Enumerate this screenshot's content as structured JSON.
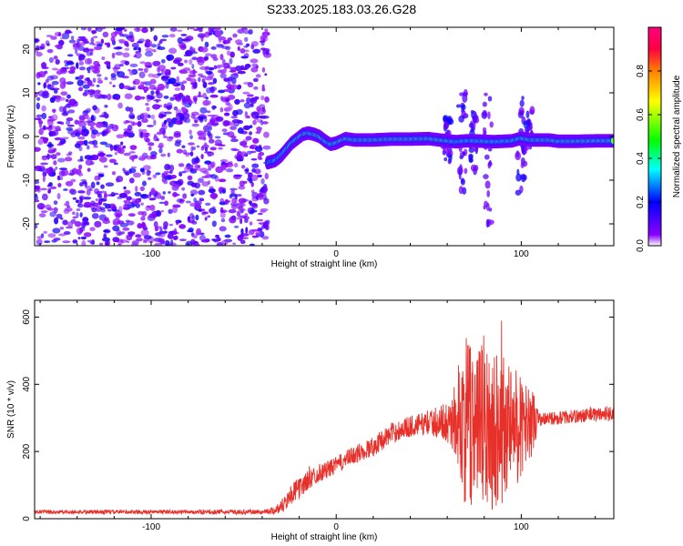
{
  "page": {
    "title": "S233.2025.183.03.26.G28"
  },
  "chart_data": [
    {
      "type": "heatmap",
      "title": "S233.2025.183.03.26.G28",
      "xlabel": "Height of straight line (km)",
      "ylabel": "Frequency (Hz)",
      "xlim": [
        -163,
        150
      ],
      "ylim": [
        -25,
        25
      ],
      "x_ticks": [
        -100,
        0,
        100
      ],
      "y_ticks": [
        -20,
        -10,
        0,
        10,
        20
      ],
      "colorbar": {
        "label": "Normalized spectral amplitude",
        "range": [
          0,
          1
        ],
        "ticks": [
          0.0,
          0.2,
          0.4,
          0.6,
          0.8
        ],
        "tick_labels": [
          "0.0",
          "0.2",
          "0.4",
          "0.6",
          "0.8"
        ],
        "colors": [
          "#ffffff",
          "#8a00ff",
          "#0000ff",
          "#00ffff",
          "#00ff00",
          "#ffff00",
          "#ff8000",
          "#ff0040",
          "#ff0080"
        ]
      },
      "noise_region": {
        "x": [
          -163,
          -37
        ],
        "freq": [
          -25,
          25
        ],
        "level": "0.05-0.35"
      },
      "signal_track": {
        "x": [
          -37,
          -33,
          -30,
          -27,
          -24,
          -21,
          -18,
          -15,
          -12,
          -9,
          -6,
          -3,
          0,
          5,
          10,
          20,
          30,
          40,
          50,
          60,
          65,
          70,
          75,
          80,
          85,
          90,
          95,
          100,
          105,
          110,
          115,
          120,
          130,
          140,
          150
        ],
        "freq": [
          -6,
          -5.5,
          -4.5,
          -3,
          -1.5,
          -0.5,
          0.5,
          0.8,
          0.5,
          0,
          -1,
          -1.8,
          -1.5,
          -0.5,
          -0.8,
          -0.8,
          -0.6,
          -0.6,
          -0.5,
          -1.0,
          -1.2,
          -1.0,
          -1.0,
          -1.1,
          -1.2,
          -1.1,
          -1.0,
          -0.4,
          -0.8,
          -0.8,
          -0.8,
          -1.1,
          -1.1,
          -1.0,
          -1.0
        ],
        "amp": [
          0.3,
          0.35,
          0.35,
          0.4,
          0.45,
          0.6,
          0.8,
          0.85,
          0.8,
          0.7,
          0.6,
          0.5,
          0.6,
          0.8,
          0.9,
          0.9,
          0.88,
          0.85,
          0.8,
          0.6,
          0.35,
          0.35,
          0.4,
          0.45,
          0.35,
          0.4,
          0.45,
          0.5,
          0.9,
          0.95,
          0.92,
          0.5,
          0.55,
          0.6,
          0.6
        ]
      },
      "side_lobes": [
        {
          "x": 68,
          "freq": [
            -15,
            10
          ],
          "amp": 0.25
        },
        {
          "x": 82,
          "freq": [
            -20,
            12
          ],
          "amp": 0.2
        },
        {
          "x": 100,
          "freq": [
            -13,
            10
          ],
          "amp": 0.25
        },
        {
          "x": 60,
          "freq": [
            -6,
            6
          ],
          "amp": 0.3
        },
        {
          "x": 74,
          "freq": [
            -8,
            6
          ],
          "amp": 0.3
        },
        {
          "x": 104,
          "freq": [
            -5,
            6
          ],
          "amp": 0.3
        }
      ]
    },
    {
      "type": "line",
      "xlabel": "Height of straight line (km)",
      "ylabel": "SNR (10 * v/v)",
      "xlim": [
        -163,
        150
      ],
      "ylim": [
        0,
        650
      ],
      "x_ticks": [
        -100,
        0,
        100
      ],
      "y_ticks": [
        0,
        200,
        400,
        600
      ],
      "series": [
        {
          "color": "#e8302a",
          "envelope": {
            "x": [
              -163,
              -120,
              -80,
              -40,
              -33,
              -28,
              -25,
              -20,
              -15,
              -10,
              -5,
              0,
              10,
              20,
              30,
              40,
              50,
              60,
              65,
              70,
              80,
              90,
              100,
              106,
              110,
              120,
              130,
              140,
              150
            ],
            "mean": [
              20,
              20,
              20,
              20,
              25,
              45,
              70,
              90,
              115,
              135,
              145,
              160,
              190,
              215,
              255,
              275,
              285,
              290,
              290,
              280,
              280,
              275,
              270,
              290,
              295,
              300,
              305,
              310,
              315
            ],
            "spread": [
              6,
              6,
              6,
              7,
              12,
              25,
              30,
              32,
              30,
              28,
              26,
              25,
              28,
              30,
              30,
              32,
              35,
              60,
              120,
              260,
              270,
              230,
              150,
              100,
              20,
              20,
              20,
              22,
              25
            ],
            "peak_max": 640
          }
        }
      ]
    }
  ]
}
